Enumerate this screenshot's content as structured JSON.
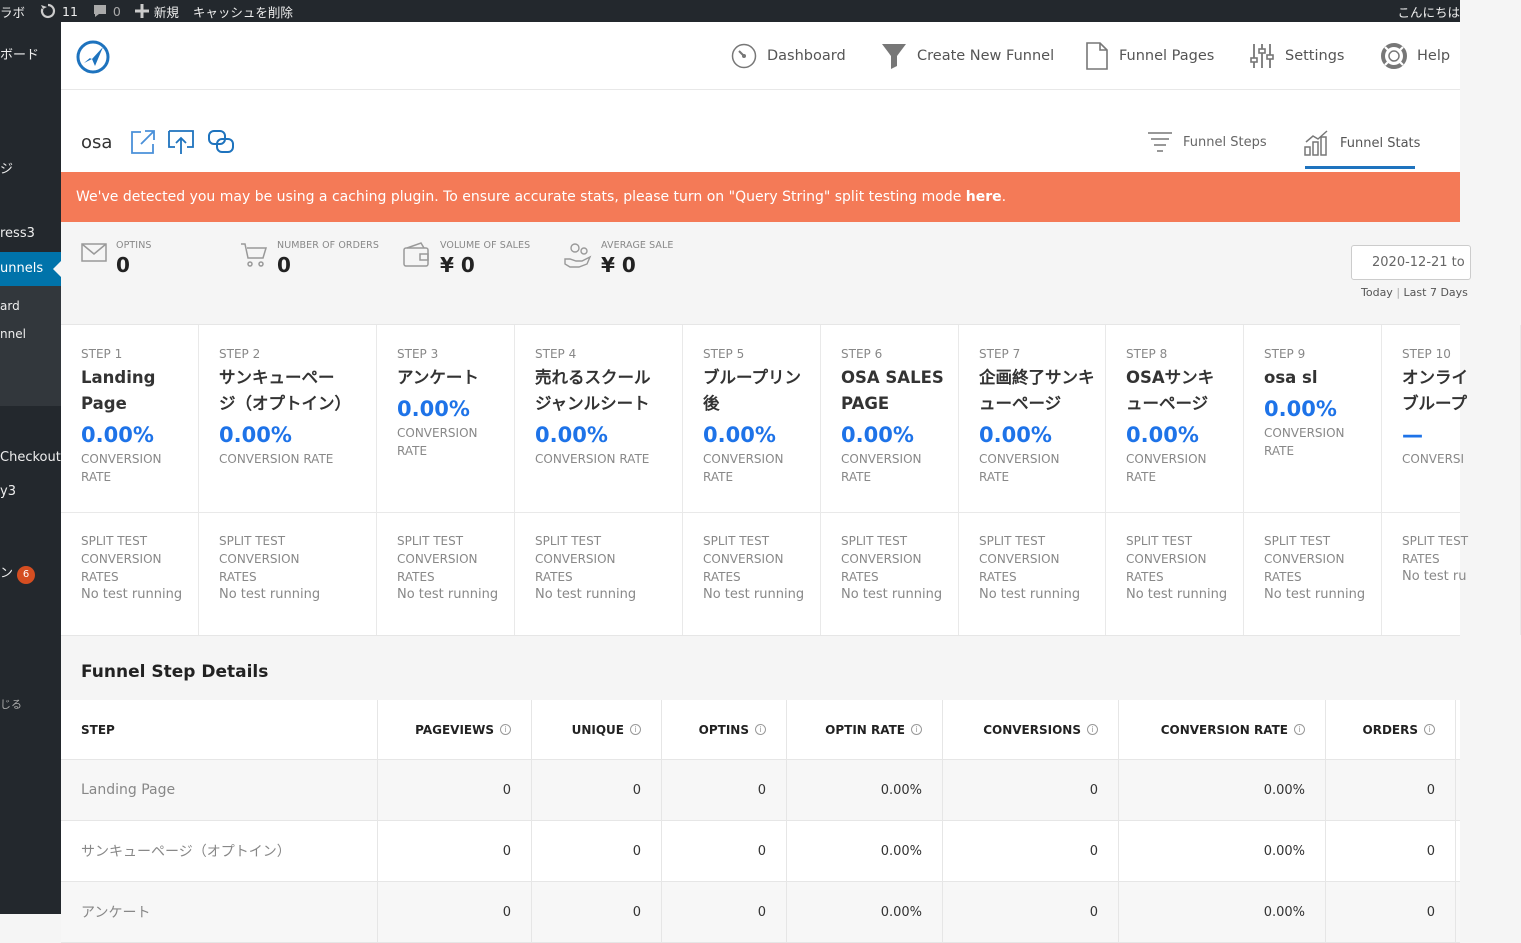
{
  "admin_bar": {
    "site": "ラボ",
    "updates": "11",
    "comments": "0",
    "new": "新規",
    "cache": "キャッシュを削除",
    "greeting": "こんにちは"
  },
  "admin_menu": {
    "dashboard": "ボード",
    "item2": "ジ",
    "press": "ress3",
    "funnels": "unnels",
    "sub1": "ard",
    "sub2": "nnel",
    "checkout": "Checkout",
    "y3": "y3",
    "item_badge_label": "ン",
    "badge": "6",
    "close": "じる"
  },
  "top_nav": {
    "dashboard": "Dashboard",
    "create": "Create New Funnel",
    "pages": "Funnel Pages",
    "settings": "Settings",
    "help": "Help"
  },
  "funnel": {
    "name": "osa",
    "tab_steps": "Funnel Steps",
    "tab_stats": "Funnel Stats"
  },
  "notice": {
    "text": "We've detected you may be using a caching plugin. To ensure accurate stats, please turn on \"Query String\" split testing mode ",
    "link": "here",
    "end": "."
  },
  "stats": {
    "optins_label": "OPTINS",
    "optins": "0",
    "orders_label": "NUMBER OF ORDERS",
    "orders": "0",
    "volume_label": "VOLUME OF SALES",
    "volume": "¥ 0",
    "avg_label": "AVERAGE SALE",
    "avg": "¥ 0",
    "date_from": "2020-12-21 to",
    "today": "Today",
    "sep": "|",
    "last7": "Last 7 Days"
  },
  "steps": [
    {
      "num": "STEP 1",
      "name": "Landing Page",
      "rate": "0.00%",
      "rate_label": "CONVERSION RATE",
      "split_label": "SPLIT TEST CONVERSION RATES",
      "split_value": "No test running"
    },
    {
      "num": "STEP 2",
      "name": "サンキューページ（オプトイン）",
      "rate": "0.00%",
      "rate_label": "CONVERSION RATE",
      "split_label": "SPLIT TEST CONVERSION RATES",
      "split_value": "No test running"
    },
    {
      "num": "STEP 3",
      "name": "アンケート",
      "rate": "0.00%",
      "rate_label": "CONVERSION RATE",
      "split_label": "SPLIT TEST CONVERSION RATES",
      "split_value": "No test running"
    },
    {
      "num": "STEP 4",
      "name": "売れるスクールジャンルシート",
      "rate": "0.00%",
      "rate_label": "CONVERSION RATE",
      "split_label": "SPLIT TEST CONVERSION RATES",
      "split_value": "No test running"
    },
    {
      "num": "STEP 5",
      "name": "ブループリン後",
      "rate": "0.00%",
      "rate_label": "CONVERSION RATE",
      "split_label": "SPLIT TEST CONVERSION RATES",
      "split_value": "No test running"
    },
    {
      "num": "STEP 6",
      "name": "OSA SALES PAGE",
      "rate": "0.00%",
      "rate_label": "CONVERSION RATE",
      "split_label": "SPLIT TEST CONVERSION RATES",
      "split_value": "No test running"
    },
    {
      "num": "STEP 7",
      "name": "企画終了サンキューページ",
      "rate": "0.00%",
      "rate_label": "CONVERSION RATE",
      "split_label": "SPLIT TEST CONVERSION RATES",
      "split_value": "No test running"
    },
    {
      "num": "STEP 8",
      "name": "OSAサンキューページ",
      "rate": "0.00%",
      "rate_label": "CONVERSION RATE",
      "split_label": "SPLIT TEST CONVERSION RATES",
      "split_value": "No test running"
    },
    {
      "num": "STEP 9",
      "name": "osa sl",
      "rate": "0.00%",
      "rate_label": "CONVERSION RATE",
      "split_label": "SPLIT TEST CONVERSION RATES",
      "split_value": "No test running"
    },
    {
      "num": "STEP 10",
      "name": "オンライブループ",
      "rate": "—",
      "rate_label": "CONVERSI",
      "split_label": "SPLIT TEST RATES",
      "split_value": "No test ru"
    }
  ],
  "details": {
    "title": "Funnel Step Details",
    "headers": [
      "STEP",
      "PAGEVIEWS",
      "UNIQUE",
      "OPTINS",
      "OPTIN RATE",
      "CONVERSIONS",
      "CONVERSION RATE",
      "ORDERS"
    ],
    "rows": [
      [
        "Landing Page",
        "0",
        "0",
        "0",
        "0.00%",
        "0",
        "0.00%",
        "0"
      ],
      [
        "サンキューページ（オプトイン）",
        "0",
        "0",
        "0",
        "0.00%",
        "0",
        "0.00%",
        "0"
      ],
      [
        "アンケート",
        "0",
        "0",
        "0",
        "0.00%",
        "0",
        "0.00%",
        "0"
      ]
    ]
  }
}
